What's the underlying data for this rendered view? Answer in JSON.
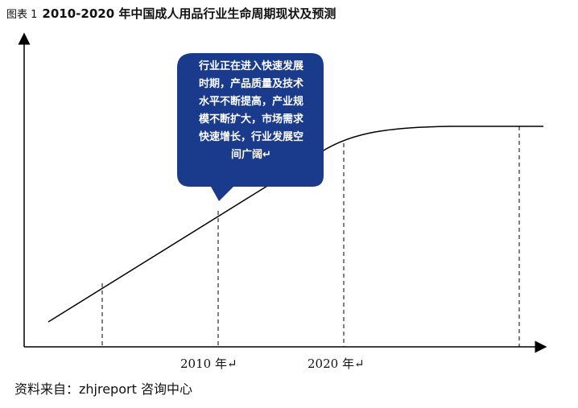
{
  "figure": {
    "prefix": "图表 1",
    "title": "2010-2020 年中国成人用品行业生命周期现状及预测"
  },
  "callout": {
    "text": "行业正在进入快速发展\n时期，产品质量及技术\n水平不断提高，产业规\n模不断扩大，市场需求\n快速增长，行业发展空\n间广阔↵"
  },
  "x_labels": [
    "2010 年↵",
    "2020 年↵"
  ],
  "source": "资料来自：zhjreport 咨询中心",
  "colors": {
    "callout_fill": "#1a3a8c",
    "line": "#000000"
  }
}
